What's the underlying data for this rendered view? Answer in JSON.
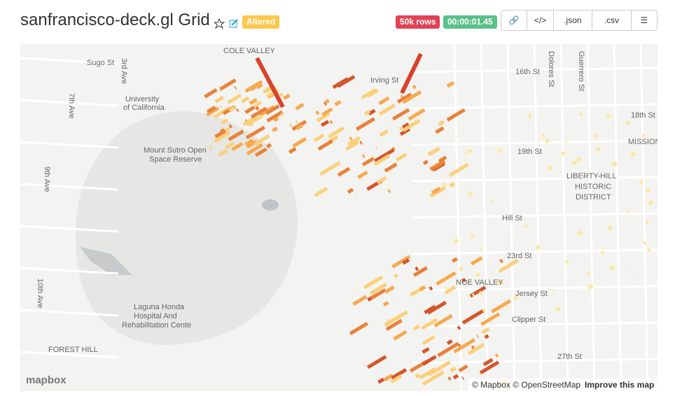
{
  "header": {
    "title": "sanfrancisco-deck.gl Grid",
    "altered": "Altered",
    "rows": "50k rows",
    "timer": "00:00:01.45"
  },
  "buttons": {
    "json": ".json",
    "csv": ".csv"
  },
  "map": {
    "labels": [
      "COLE VALLEY",
      "University",
      "of California",
      "Mount Sutro Open",
      "Space Reserve",
      "Laguna Honda",
      "Hospital And",
      "Rehabilitation Cente",
      "7th Ave",
      "9th Ave",
      "10th Ave",
      "3rd Ave",
      "16th St",
      "18th St",
      "19th St",
      "Hill St",
      "23rd St",
      "Jersey St",
      "Clipper St",
      "27th St",
      "Dolores St",
      "Guerrero St",
      "LIBERTY-HILL",
      "HISTORIC",
      "DISTRICT",
      "MISSION",
      "NOE VALLEY",
      "FOREST HILL",
      "Sugo St",
      "Irving St"
    ],
    "logo": "mapbox",
    "attribution": "© Mapbox © OpenStreetMap",
    "improve": "Improve this map"
  }
}
